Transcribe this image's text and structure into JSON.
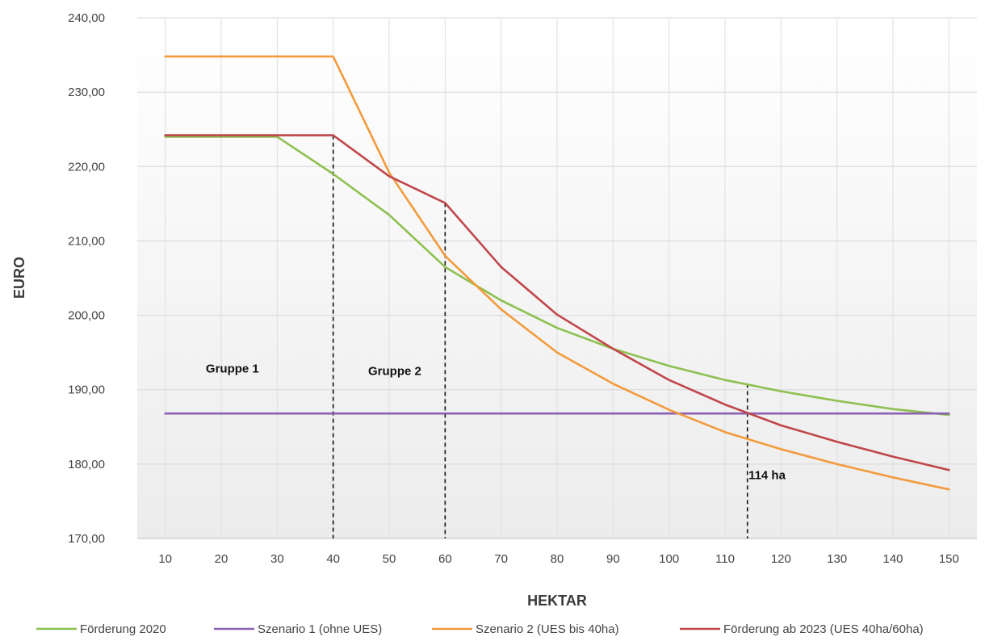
{
  "chart_data": {
    "type": "line",
    "title": "",
    "xlabel": "HEKTAR",
    "ylabel": "EURO",
    "x": [
      10,
      20,
      30,
      40,
      50,
      60,
      70,
      80,
      90,
      100,
      110,
      120,
      130,
      140,
      150
    ],
    "xlim": [
      5,
      155
    ],
    "ylim": [
      170,
      240
    ],
    "yticks": [
      170,
      180,
      190,
      200,
      210,
      220,
      230,
      240
    ],
    "ytick_labels": [
      "170,00",
      "180,00",
      "190,00",
      "200,00",
      "210,00",
      "220,00",
      "230,00",
      "240,00"
    ],
    "xtick_labels": [
      "10",
      "20",
      "30",
      "40",
      "50",
      "60",
      "70",
      "80",
      "90",
      "100",
      "110",
      "120",
      "130",
      "140",
      "150"
    ],
    "grid": true,
    "legend_position": "bottom",
    "series": [
      {
        "name": "Förderung 2020",
        "color": "#8dc050",
        "values": [
          224.0,
          224.0,
          224.0,
          219.0,
          213.5,
          206.5,
          202.0,
          198.3,
          195.5,
          193.2,
          191.3,
          189.8,
          188.5,
          187.4,
          186.6
        ]
      },
      {
        "name": "Szenario 1 (ohne UES)",
        "color": "#8a61b1",
        "values": [
          186.8,
          186.8,
          186.8,
          186.8,
          186.8,
          186.8,
          186.8,
          186.8,
          186.8,
          186.8,
          186.8,
          186.8,
          186.8,
          186.8,
          186.8
        ]
      },
      {
        "name": "Szenario 2 (UES bis 40ha)",
        "color": "#f39a3c",
        "values": [
          234.8,
          234.8,
          234.8,
          234.8,
          219.2,
          208.0,
          200.8,
          195.0,
          190.8,
          187.3,
          184.3,
          182.0,
          180.0,
          178.2,
          176.6
        ]
      },
      {
        "name": "Förderung ab 2023 (UES 40ha/60ha)",
        "color": "#c0464a",
        "values": [
          224.2,
          224.2,
          224.2,
          224.2,
          218.7,
          215.1,
          206.5,
          200.1,
          195.5,
          191.3,
          188.0,
          185.2,
          183.0,
          181.0,
          179.2
        ]
      }
    ],
    "vlines": [
      {
        "x": 40,
        "y_top": 224.2
      },
      {
        "x": 60,
        "y_top": 215.1
      },
      {
        "x": 114,
        "y_top": 190.8
      }
    ],
    "annotations": [
      {
        "text": "Gruppe 1",
        "x": 22,
        "y": 192.3
      },
      {
        "text": "Gruppe 2",
        "x": 51,
        "y": 192.0
      },
      {
        "text": "114 ha",
        "x": 117.5,
        "y": 178.0
      }
    ]
  }
}
